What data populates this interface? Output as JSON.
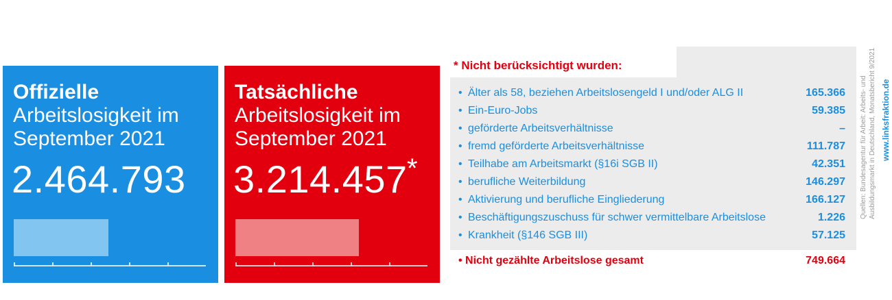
{
  "official": {
    "title_bold": "Offizielle",
    "title_line2": "Arbeitslosigkeit im",
    "title_line3": "September 2021",
    "value": "2.464.793"
  },
  "actual": {
    "title_bold": "Tatsächliche",
    "title_line2": "Arbeitslosigkeit im",
    "title_line3": "September 2021",
    "value": "3.214.457",
    "asterisk": "*"
  },
  "breakdown": {
    "heading": "* Nicht berücksichtigt wurden:",
    "bullet": "•",
    "items": [
      {
        "label": "Älter als 58, beziehen Arbeitslosengeld I und/oder ALG II",
        "value": "165.366"
      },
      {
        "label": "Ein-Euro-Jobs",
        "value": "59.385"
      },
      {
        "label": "geförderte Arbeitsverhältnisse",
        "value": "–"
      },
      {
        "label": "fremd geförderte Arbeitsverhältnisse",
        "value": "111.787"
      },
      {
        "label": "Teilhabe am Arbeitsmarkt (§16i SGB II)",
        "value": "42.351"
      },
      {
        "label": "berufliche Weiterbildung",
        "value": "146.297"
      },
      {
        "label": "Aktivierung und berufliche Eingliederung",
        "value": "166.127"
      },
      {
        "label": "Beschäftigungszuschuss für schwer vermittelbare Arbeitslose",
        "value": "1.226"
      },
      {
        "label": "Krankheit (§146 SGB III)",
        "value": "57.125"
      }
    ],
    "total_label": "• Nicht gezählte Arbeitslose gesamt",
    "total_value": "749.664"
  },
  "source": {
    "line1": "Quellen: Bundesagentur für Arbeit: Arbeits- und",
    "line2": "Ausbildungsmarkt in Deutschland, Monatsbericht 9/2021",
    "website": "www.linksfraktion.de"
  },
  "colors": {
    "blue": "#1a8ee0",
    "red": "#e2000f",
    "blue_bar": "#82c5f0",
    "red_bar": "#ef8083",
    "panel": "#ececec"
  },
  "chart_data": {
    "type": "bar",
    "categories": [
      "Offizielle",
      "Tatsächliche"
    ],
    "values": [
      2464793,
      3214457
    ],
    "ylim": [
      0,
      5000000
    ],
    "ticks": 5
  }
}
